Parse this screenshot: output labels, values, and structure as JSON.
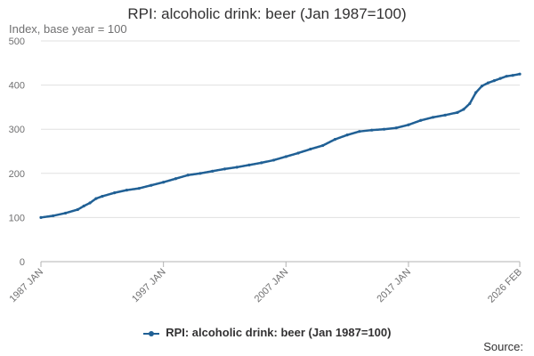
{
  "chart_data": {
    "type": "line",
    "title": "RPI: alcoholic drink: beer (Jan 1987=100)",
    "ylabel": "Index, base year = 100",
    "xlabel": "",
    "ylim": [
      0,
      500
    ],
    "yticks": [
      0,
      100,
      200,
      300,
      400,
      500
    ],
    "xlim": [
      "1987 JAN",
      "2026 FEB"
    ],
    "xtick_labels": [
      {
        "label": "1987 JAN",
        "year": 1987.0
      },
      {
        "label": "1997 JAN",
        "year": 1997.0
      },
      {
        "label": "2007 JAN",
        "year": 2007.0
      },
      {
        "label": "2017 JAN",
        "year": 2017.0
      },
      {
        "label": "2026 FEB",
        "year": 2026.083
      }
    ],
    "grid": true,
    "legend_position": "bottom",
    "series": [
      {
        "name": "RPI: alcoholic drink: beer (Jan 1987=100)",
        "color": "#206095",
        "points": [
          [
            1987.0,
            100
          ],
          [
            1988.0,
            104
          ],
          [
            1989.0,
            110
          ],
          [
            1990.0,
            118
          ],
          [
            1990.5,
            126
          ],
          [
            1991.0,
            133
          ],
          [
            1991.5,
            143
          ],
          [
            1992.0,
            148
          ],
          [
            1993.0,
            156
          ],
          [
            1994.0,
            162
          ],
          [
            1995.0,
            166
          ],
          [
            1996.0,
            173
          ],
          [
            1997.0,
            180
          ],
          [
            1998.0,
            188
          ],
          [
            1999.0,
            196
          ],
          [
            2000.0,
            200
          ],
          [
            2001.0,
            205
          ],
          [
            2002.0,
            210
          ],
          [
            2003.0,
            214
          ],
          [
            2004.0,
            219
          ],
          [
            2005.0,
            224
          ],
          [
            2006.0,
            230
          ],
          [
            2007.0,
            238
          ],
          [
            2008.0,
            246
          ],
          [
            2009.0,
            255
          ],
          [
            2010.0,
            263
          ],
          [
            2011.0,
            277
          ],
          [
            2012.0,
            287
          ],
          [
            2013.0,
            295
          ],
          [
            2014.0,
            298
          ],
          [
            2015.0,
            300
          ],
          [
            2016.0,
            303
          ],
          [
            2017.0,
            310
          ],
          [
            2018.0,
            320
          ],
          [
            2019.0,
            327
          ],
          [
            2020.0,
            332
          ],
          [
            2021.0,
            338
          ],
          [
            2021.5,
            345
          ],
          [
            2022.0,
            358
          ],
          [
            2022.5,
            383
          ],
          [
            2023.0,
            398
          ],
          [
            2023.5,
            405
          ],
          [
            2024.0,
            410
          ],
          [
            2024.5,
            415
          ],
          [
            2025.0,
            420
          ],
          [
            2025.5,
            422
          ],
          [
            2026.083,
            425
          ]
        ]
      }
    ],
    "source_label": "Source:"
  }
}
